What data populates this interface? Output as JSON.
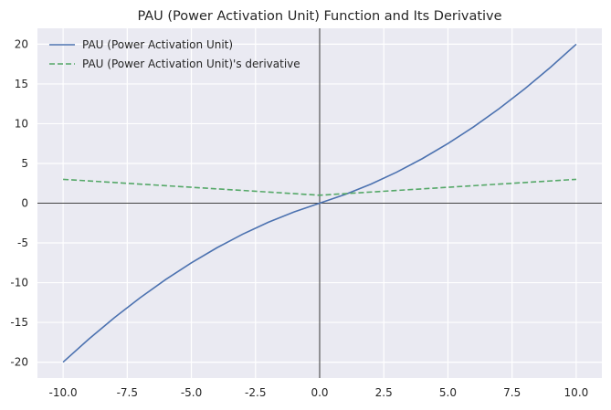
{
  "chart_data": {
    "type": "line",
    "title": "PAU (Power Activation Unit) Function and Its Derivative",
    "xlabel": "",
    "ylabel": "",
    "xlim": [
      -11.0,
      11.0
    ],
    "ylim": [
      -22.0,
      22.0
    ],
    "xticks": [
      -10.0,
      -7.5,
      -5.0,
      -2.5,
      0.0,
      2.5,
      5.0,
      7.5,
      10.0
    ],
    "xtick_labels": [
      "-10.0",
      "-7.5",
      "-5.0",
      "-2.5",
      "0.0",
      "2.5",
      "5.0",
      "7.5",
      "10.0"
    ],
    "yticks": [
      20,
      15,
      10,
      5,
      0,
      -5,
      -10,
      -15,
      -20
    ],
    "ytick_labels": [
      "20",
      "15",
      "10",
      "5",
      "0",
      "-5",
      "-10",
      "-15",
      "-20"
    ],
    "grid": true,
    "legend_position": "top-left",
    "reference_lines": {
      "x": 0,
      "y": 0
    },
    "series": [
      {
        "name": "PAU (Power Activation Unit)",
        "style": "solid",
        "color": "#4c72b0",
        "x": [
          -10,
          -9,
          -8,
          -7,
          -6,
          -5,
          -4,
          -3,
          -2,
          -1,
          0,
          1,
          2,
          3,
          4,
          5,
          6,
          7,
          8,
          9,
          10
        ],
        "y": [
          -20,
          -17.1,
          -14.4,
          -11.9,
          -9.6,
          -7.5,
          -5.6,
          -3.9,
          -2.4,
          -1.1,
          0,
          1.1,
          2.4,
          3.9,
          5.6,
          7.5,
          9.6,
          11.9,
          14.4,
          17.1,
          20
        ]
      },
      {
        "name": "PAU (Power Activation Unit)'s derivative",
        "style": "dashed",
        "color": "#55a868",
        "x": [
          -10,
          -5,
          0,
          5,
          10
        ],
        "y": [
          3,
          2,
          1,
          2,
          3
        ]
      }
    ]
  }
}
